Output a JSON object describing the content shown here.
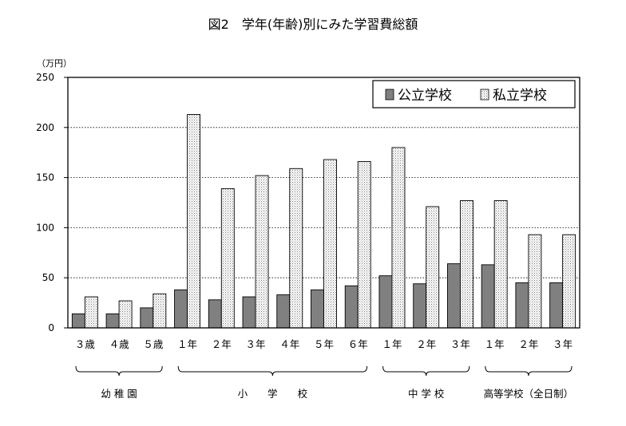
{
  "chart_data": {
    "type": "bar",
    "title": "図2　学年(年齢)別にみた学習費総額",
    "unit_label": "（万円）",
    "ylim": [
      0,
      250
    ],
    "yticks": [
      "0",
      "50",
      "100",
      "150",
      "200",
      "250"
    ],
    "grid": true,
    "legend_position": "top-right",
    "categories": [
      "３歳",
      "４歳",
      "５歳",
      "１年",
      "２年",
      "３年",
      "４年",
      "５年",
      "６年",
      "１年",
      "２年",
      "３年",
      "１年",
      "２年",
      "３年"
    ],
    "groups": [
      {
        "label": "幼 稚 園",
        "categories": [
          "３歳",
          "４歳",
          "５歳"
        ]
      },
      {
        "label": "小　　学　　校",
        "categories": [
          "１年",
          "２年",
          "３年",
          "４年",
          "５年",
          "６年"
        ]
      },
      {
        "label": "中 学 校",
        "categories": [
          "１年",
          "２年",
          "３年"
        ]
      },
      {
        "label": "高等学校（全日制）",
        "categories": [
          "１年",
          "２年",
          "３年"
        ]
      }
    ],
    "series": [
      {
        "name": "公立学校",
        "color": "#808080",
        "pattern": "solid-gray",
        "values": [
          14,
          14,
          20,
          38,
          28,
          31,
          33,
          38,
          42,
          52,
          44,
          64,
          63,
          45,
          45
        ]
      },
      {
        "name": "私立学校",
        "color": "#e8e8e8",
        "pattern": "dotted-light",
        "values": [
          31,
          27,
          34,
          213,
          139,
          152,
          159,
          168,
          166,
          180,
          121,
          127,
          127,
          93,
          93
        ]
      }
    ]
  }
}
